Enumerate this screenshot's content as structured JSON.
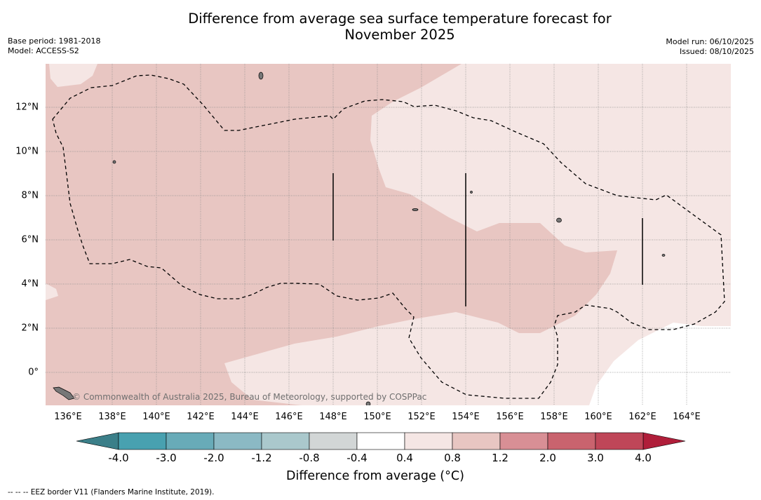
{
  "title_line1": "Difference from average sea surface temperature forecast for",
  "title_line2": "November 2025",
  "meta_left": {
    "base_period": "Base period: 1981-2018",
    "model": "Model: ACCESS-S2"
  },
  "meta_right": {
    "model_run": "Model run: 06/10/2025",
    "issued": "Issued: 08/10/2025"
  },
  "credit": "© Commonwealth of Australia 2025, Bureau of Meteorology, supported by COSPPac",
  "x_ticks": [
    "136°E",
    "138°E",
    "140°E",
    "142°E",
    "144°E",
    "146°E",
    "148°E",
    "150°E",
    "152°E",
    "154°E",
    "156°E",
    "158°E",
    "160°E",
    "162°E",
    "164°E"
  ],
  "y_ticks": [
    "12°N",
    "10°N",
    "8°N",
    "6°N",
    "4°N",
    "2°N",
    "0°"
  ],
  "colorbar": {
    "labels": [
      "-4.0",
      "-3.0",
      "-2.0",
      "-1.2",
      "-0.8",
      "-0.4",
      "0.4",
      "0.8",
      "1.2",
      "2.0",
      "3.0",
      "4.0"
    ],
    "colors": [
      "#48a1b0",
      "#68abb8",
      "#8bb9c4",
      "#aac8cc",
      "#d2d6d6",
      "#ffffff",
      "#f5e6e4",
      "#e8c6c2",
      "#d88f95",
      "#c9636e",
      "#bf4658"
    ],
    "under_color": "#3b7f89",
    "over_color": "#b01e3a",
    "title": "Difference from average (°C)"
  },
  "legend_note": "-- -- -- EEZ border V11 (Flanders Marine Institute, 2019).",
  "fill_colors": {
    "band_0.8_1.2": "#e8c6c2",
    "band_0.4_0.8": "#f5e6e4",
    "band_-0.4_0.4": "#ffffff"
  }
}
